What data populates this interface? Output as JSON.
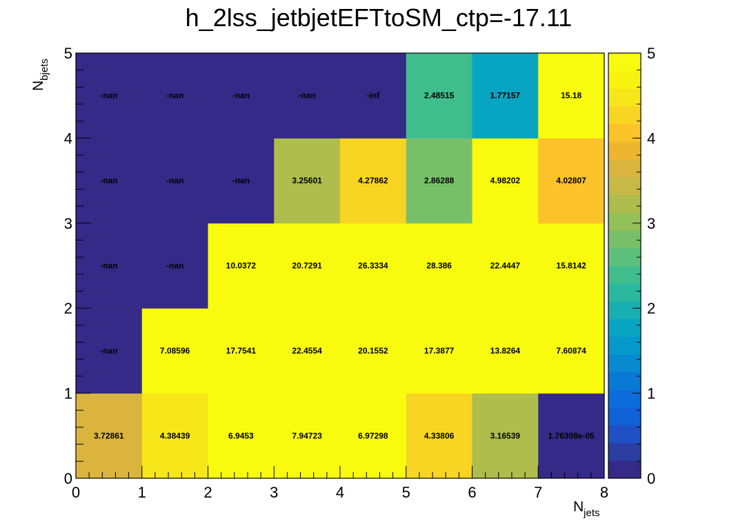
{
  "chart_data": {
    "type": "heatmap",
    "title": "h_2lss_jetbjetEFTtoSM_ctp=-17.11",
    "xlabel_main": "N",
    "xlabel_sub": "jets",
    "ylabel_main": "N",
    "ylabel_sub": "bjets",
    "xlim": [
      0,
      8
    ],
    "ylim": [
      0,
      5
    ],
    "zlim": [
      0,
      5
    ],
    "x_ticks": [
      "0",
      "1",
      "2",
      "3",
      "4",
      "5",
      "6",
      "7",
      "8"
    ],
    "y_ticks": [
      "0",
      "1",
      "2",
      "3",
      "4",
      "5"
    ],
    "z_ticks": [
      "0",
      "1",
      "2",
      "3",
      "4",
      "5"
    ],
    "rows": [
      {
        "y_bin": 0,
        "labels": [
          "3.72861",
          "4.38439",
          "6.9453",
          "7.94723",
          "6.97298",
          "4.33806",
          "3.16539",
          "1.76308e-05"
        ]
      },
      {
        "y_bin": 1,
        "labels": [
          "-nan",
          "7.08596",
          "17.7541",
          "22.4554",
          "20.1552",
          "17.3877",
          "13.8264",
          "7.60874"
        ]
      },
      {
        "y_bin": 2,
        "labels": [
          "-nan",
          "-nan",
          "10.0372",
          "20.7291",
          "26.3334",
          "28.386",
          "22.4447",
          "15.8142"
        ]
      },
      {
        "y_bin": 3,
        "labels": [
          "-nan",
          "-nan",
          "-nan",
          "3.25601",
          "4.27862",
          "2.86288",
          "4.98202",
          "4.02807"
        ]
      },
      {
        "y_bin": 4,
        "labels": [
          "-nan",
          "-nan",
          "-nan",
          "-nan",
          "-inf",
          "2.48515",
          "1.77157",
          "15.18"
        ]
      }
    ],
    "palette": [
      "#352a87",
      "#2c3ea2",
      "#1f50c5",
      "#1060d7",
      "#0b6ddc",
      "#0979d6",
      "#078ad0",
      "#0599cb",
      "#08a5c2",
      "#18afb2",
      "#2ab8a0",
      "#40bd8d",
      "#5dc07a",
      "#78c068",
      "#93c057",
      "#aebd4b",
      "#c7b945",
      "#dbb43e",
      "#eeb52f",
      "#fbc22a",
      "#f8d522",
      "#f6e61a",
      "#f7f30e",
      "#f9fb0e"
    ],
    "grid": false,
    "legend": "right colorbar"
  }
}
